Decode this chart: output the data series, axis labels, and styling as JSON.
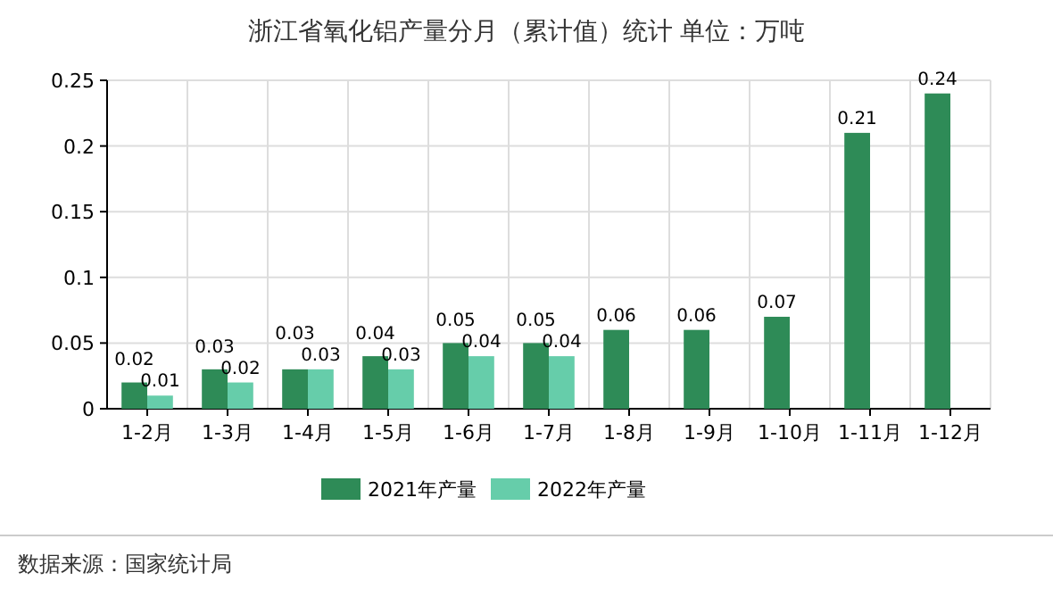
{
  "chart_data": {
    "type": "bar",
    "title": "浙江省氧化铝产量分月（累计值）统计 单位：万吨",
    "categories": [
      "1-2月",
      "1-3月",
      "1-4月",
      "1-5月",
      "1-6月",
      "1-7月",
      "1-8月",
      "1-9月",
      "1-10月",
      "1-11月",
      "1-12月"
    ],
    "series": [
      {
        "name": "2021年产量",
        "color": "#2e8b57",
        "values": [
          0.02,
          0.03,
          0.03,
          0.04,
          0.05,
          0.05,
          0.06,
          0.06,
          0.07,
          0.21,
          0.24
        ]
      },
      {
        "name": "2022年产量",
        "color": "#66cdaa",
        "values": [
          0.01,
          0.02,
          0.03,
          0.03,
          0.04,
          0.04,
          null,
          null,
          null,
          null,
          null
        ]
      }
    ],
    "ylim": [
      0,
      0.25
    ],
    "yticks": [
      0,
      0.05,
      0.1,
      0.15,
      0.2,
      0.25
    ],
    "grid": true,
    "legend": "bottom",
    "data_labels": true,
    "annotations": [
      "数据来源：国家统计局"
    ]
  }
}
